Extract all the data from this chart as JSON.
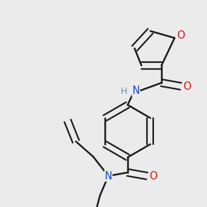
{
  "background_color": "#ebebeb",
  "bond_color": "#1a1a1a",
  "atom_colors": {
    "O": "#dd1111",
    "N": "#1a44cc",
    "H": "#6a8fa0"
  },
  "font_size": 9.5,
  "figsize": [
    3.0,
    3.0
  ],
  "dpi": 100
}
